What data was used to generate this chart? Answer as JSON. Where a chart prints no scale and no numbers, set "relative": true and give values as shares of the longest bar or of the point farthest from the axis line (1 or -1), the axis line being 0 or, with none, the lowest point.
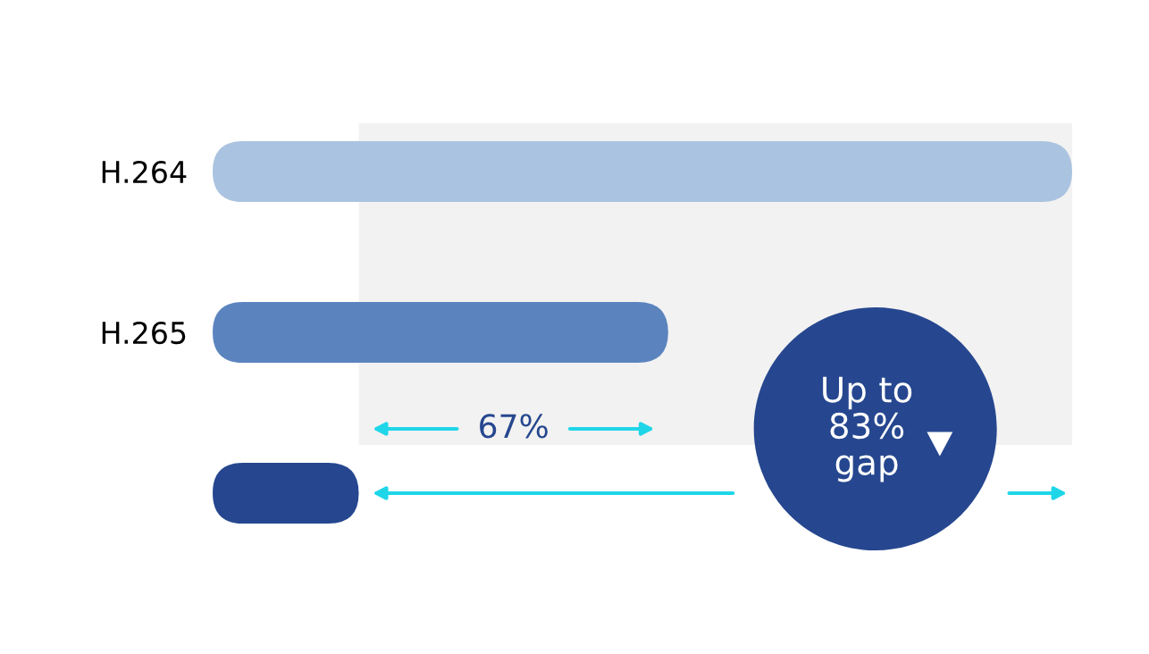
{
  "chart_data": {
    "type": "bar",
    "orientation": "horizontal",
    "relative": true,
    "categories": [
      "H.264",
      "H.265",
      null
    ],
    "colors": [
      "#aac3e0",
      "#5b84bf",
      "#26478f"
    ],
    "values": [
      1,
      0.53,
      0.17
    ],
    "annotations": [
      "67%",
      "Up to\n83%\ngap"
    ],
    "grid": false,
    "legend": false
  }
}
